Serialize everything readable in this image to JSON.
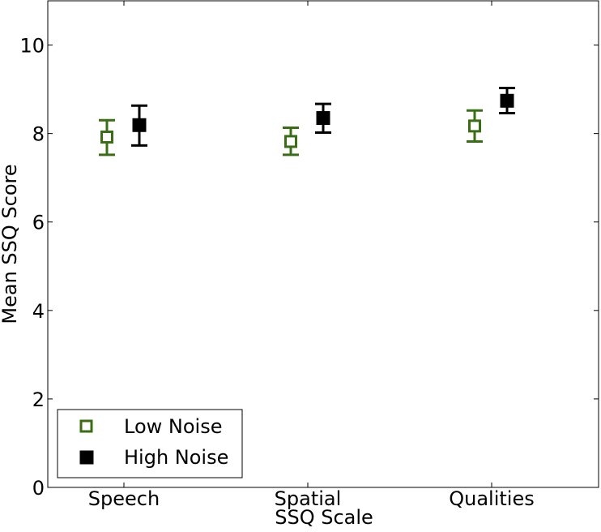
{
  "chart_data": {
    "type": "scatter",
    "categories": [
      "Speech",
      "Spatial",
      "Qualities"
    ],
    "xlabel": "SSQ Scale",
    "ylabel": "Mean SSQ Score",
    "ylim": [
      0,
      11
    ],
    "yticks": [
      0,
      2,
      4,
      6,
      8,
      10
    ],
    "grid": false,
    "legend_position": "lower-left",
    "series": [
      {
        "name": "Low Noise",
        "marker": "open-square",
        "color": "#3a6e14",
        "values": [
          7.92,
          7.82,
          8.17
        ],
        "err_low": [
          7.52,
          7.52,
          7.82
        ],
        "err_high": [
          8.3,
          8.13,
          8.52
        ]
      },
      {
        "name": "High Noise",
        "marker": "filled-square",
        "color": "#000000",
        "values": [
          8.19,
          8.35,
          8.74
        ],
        "err_low": [
          7.73,
          8.02,
          8.46
        ],
        "err_high": [
          8.63,
          8.67,
          9.03
        ]
      }
    ]
  }
}
